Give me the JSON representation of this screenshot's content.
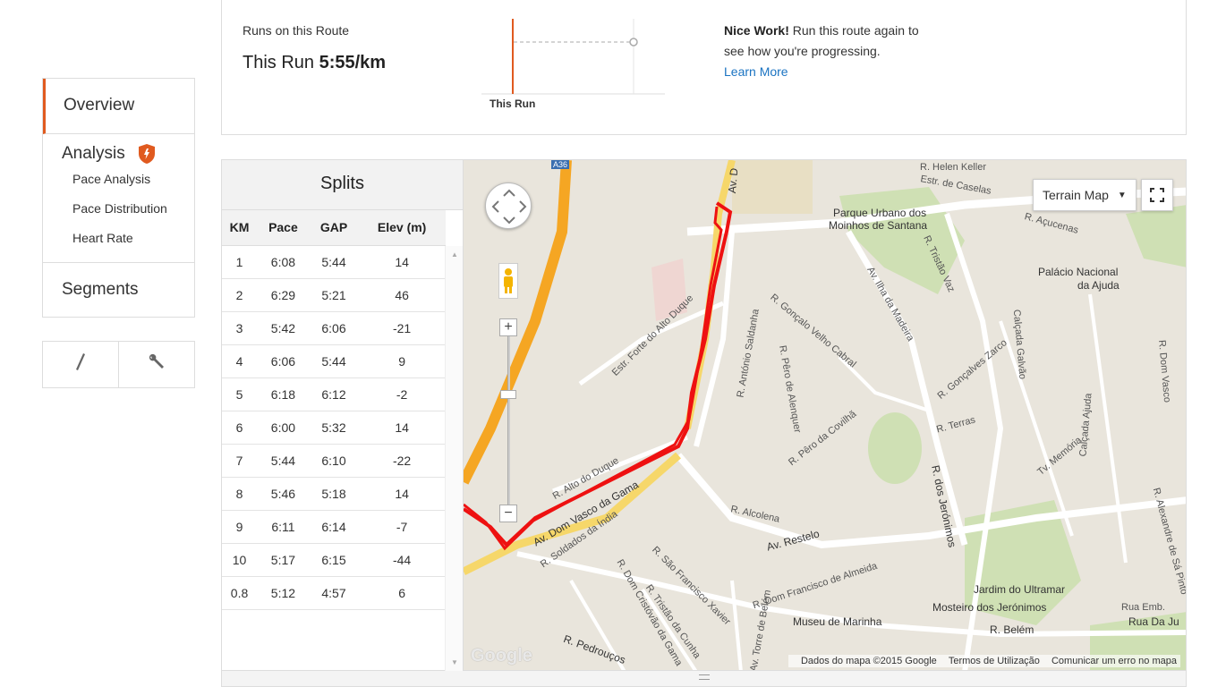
{
  "nav": {
    "overview": "Overview",
    "analysis": "Analysis",
    "analysis_items": [
      "Pace Analysis",
      "Pace Distribution",
      "Heart Rate"
    ],
    "segments": "Segments",
    "tools": [
      "pencil-icon",
      "wrench-icon"
    ]
  },
  "runs": {
    "label": "Runs on this Route",
    "this_run_prefix": "This Run",
    "this_run_pace": "5:55/km",
    "chart_label": "This Run",
    "nice_bold": "Nice Work!",
    "nice_text": "Run this route again to see how you're progressing.",
    "learn_more": "Learn More"
  },
  "splits": {
    "title": "Splits",
    "columns": [
      "KM",
      "Pace",
      "GAP",
      "Elev (m)"
    ],
    "rows": [
      [
        "1",
        "6:08",
        "5:44",
        "14"
      ],
      [
        "2",
        "6:29",
        "5:21",
        "46"
      ],
      [
        "3",
        "5:42",
        "6:06",
        "-21"
      ],
      [
        "4",
        "6:06",
        "5:44",
        "9"
      ],
      [
        "5",
        "6:18",
        "6:12",
        "-2"
      ],
      [
        "6",
        "6:00",
        "5:32",
        "14"
      ],
      [
        "7",
        "5:44",
        "6:10",
        "-22"
      ],
      [
        "8",
        "5:46",
        "5:18",
        "14"
      ],
      [
        "9",
        "6:11",
        "6:14",
        "-7"
      ],
      [
        "10",
        "5:17",
        "6:15",
        "-44"
      ],
      [
        "0.8",
        "5:12",
        "4:57",
        "6"
      ]
    ]
  },
  "map": {
    "terrain_button": "Terrain Map",
    "labels": [
      "Parque Urbano dos",
      "Moinhos de Santana",
      "Palácio Nacional",
      "da Ajuda",
      "Av. Ilha da Madeira",
      "R. Gonçalo Velho Cabral",
      "R. António Saldanha",
      "R. Pêro de Alenquer",
      "R. Pêro da Covilhã",
      "R. Gonçalves Zarco",
      "Calçada Galvão",
      "R. Terras",
      "Tv. Memória",
      "Calçada Ajuda",
      "R. dos Jerónimos",
      "R. Alto do Duque",
      "Av. Dom Vasco da Gama",
      "R. Soldados da Índia",
      "R. Alcolena",
      "Av. Restelo",
      "R. Dom Francisco de Almeida",
      "Museu de Marinha",
      "Jardim do Ultramar",
      "Mosteiro dos Jerónimos",
      "R. Belém",
      "Rua Da Ju",
      "Rua Emb.",
      "Estr. Forte do Alto Duque",
      "R. São Francisco Xavier",
      "R. Tristão da Cunha",
      "R. Dom Cristóvão da Gama",
      "R. Pedrouços",
      "Av. Torre de Belém",
      "Estr. de Caselas",
      "R. Açucenas",
      "R. Tristão Vaz",
      "Av. D",
      "A36",
      "R. Dom Vasco",
      "R. Alexandre de Sá Pinto",
      "R. Helen Keller"
    ],
    "attribution": [
      "Dados do mapa ©2015 Google",
      "Termos de Utilização",
      "Comunicar um erro no mapa"
    ],
    "logo": "Google",
    "route_color": "#ee1111"
  },
  "colors": {
    "accent": "#e05a1f",
    "link": "#1a73c2"
  }
}
